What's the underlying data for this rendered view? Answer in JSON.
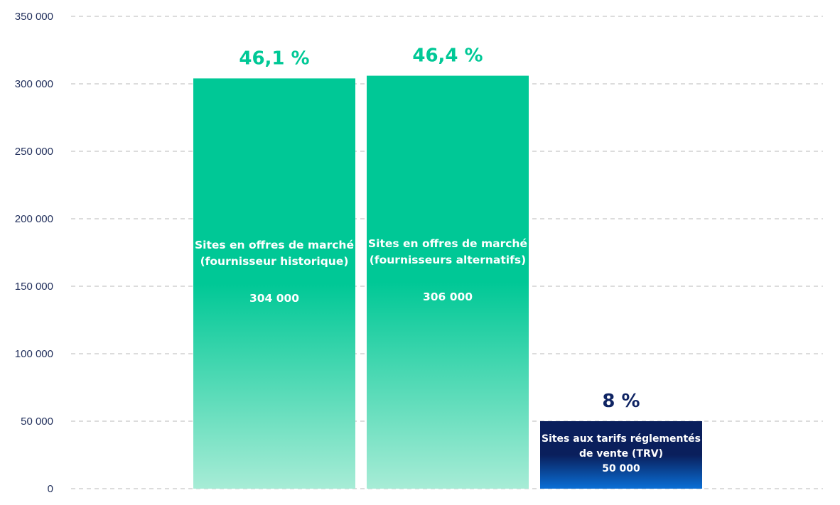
{
  "chart_data": {
    "type": "bar",
    "ylim": [
      0,
      350000
    ],
    "yticks": [
      0,
      50000,
      100000,
      150000,
      200000,
      250000,
      300000,
      350000
    ],
    "ytick_labels": [
      "0",
      "50 000",
      "100 000",
      "150 000",
      "200 000",
      "250 000",
      "300 000",
      "350 000"
    ],
    "grid": true,
    "bars": [
      {
        "value": 304000,
        "percent_label": "46,1 %",
        "label_lines": [
          "Sites en offres de marché",
          "(fournisseur historique)"
        ],
        "value_label": "304 000",
        "color_top": "#00c896",
        "color_bottom": "#a7ecd6",
        "percent_color": "#00c896"
      },
      {
        "value": 306000,
        "percent_label": "46,4 %",
        "label_lines": [
          "Sites en offres de marché",
          "(fournisseurs alternatifs)"
        ],
        "value_label": "306 000",
        "color_top": "#00c896",
        "color_bottom": "#a7ecd6",
        "percent_color": "#00c896"
      },
      {
        "value": 50000,
        "percent_label": "8 %",
        "label_lines": [
          "Sites aux tarifs réglementés",
          "de vente (TRV)"
        ],
        "value_label": "50 000",
        "color_top": "#0a1f5c",
        "color_bottom": "#0a6fd6",
        "percent_color": "#0f2463"
      }
    ],
    "grid_color": "#c8c8c8",
    "tick_color": "#1f2d5a"
  }
}
